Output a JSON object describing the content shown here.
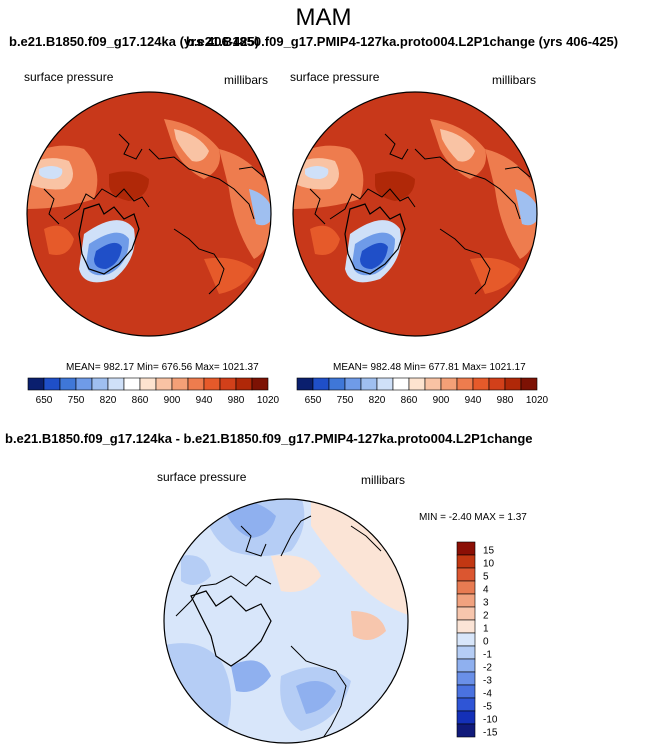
{
  "page": {
    "title": "MAM"
  },
  "panel_left": {
    "title": "b.e21.B1850.f09_g17.124ka (yrs 406-425)",
    "variable": "surface pressure",
    "units": "millibars",
    "stats": "MEAN= 982.17  Min= 676.56  Max= 1021.37"
  },
  "panel_right": {
    "title": "b.e21.B1850.f09_g17.PMIP4-127ka.proto004.L2P1change (yrs 406-425)",
    "variable": "surface pressure",
    "units": "millibars",
    "stats": "MEAN= 982.48  Min= 677.81  Max= 1021.17"
  },
  "panel_diff": {
    "title": "b.e21.B1850.f09_g17.124ka - b.e21.B1850.f09_g17.PMIP4-127ka.proto004.L2P1change",
    "variable": "surface pressure",
    "units": "millibars",
    "stats": "MIN =  -2.40 MAX =   1.37"
  },
  "colors": {
    "abs_scale": [
      "#0a1f6e",
      "#1f4fc8",
      "#3f77d8",
      "#6f9be8",
      "#9fbff0",
      "#cfe0f8",
      "#ffffff",
      "#fde3cf",
      "#f9c3a4",
      "#f4a077",
      "#ee7c4e",
      "#e65a2a",
      "#d2401a",
      "#b02808",
      "#7d1204"
    ],
    "diff_scale": [
      "#101a7a",
      "#1430b8",
      "#2f55d6",
      "#4a72e0",
      "#6a90e8",
      "#8fb0ef",
      "#b5cdf5",
      "#d8e6fa",
      "#fbe4d6",
      "#f7c6ad",
      "#f1a27f",
      "#e87b52",
      "#db5630",
      "#c23712",
      "#8b0f05"
    ]
  },
  "chart_data": [
    {
      "type": "heatmap",
      "title": "b.e21.B1850.f09_g17.124ka (yrs 406-425)",
      "field": "surface pressure",
      "units": "millibars",
      "projection": "polar stereographic (north)",
      "mean": 982.17,
      "min": 676.56,
      "max": 1021.37,
      "colorbar_ticks": [
        650,
        750,
        820,
        860,
        900,
        940,
        980,
        1020
      ]
    },
    {
      "type": "heatmap",
      "title": "b.e21.B1850.f09_g17.PMIP4-127ka.proto004.L2P1change (yrs 406-425)",
      "field": "surface pressure",
      "units": "millibars",
      "projection": "polar stereographic (north)",
      "mean": 982.48,
      "min": 677.81,
      "max": 1021.17,
      "colorbar_ticks": [
        650,
        750,
        820,
        860,
        900,
        940,
        980,
        1020
      ]
    },
    {
      "type": "heatmap",
      "title": "b.e21.B1850.f09_g17.124ka - b.e21.B1850.f09_g17.PMIP4-127ka.proto004.L2P1change",
      "field": "surface pressure",
      "units": "millibars",
      "projection": "polar stereographic (north)",
      "min": -2.4,
      "max": 1.37,
      "colorbar_levels": [
        "15",
        "10",
        "5",
        "4",
        "3",
        "2",
        "1",
        "0",
        "-1",
        "-2",
        "-3",
        "-4",
        "-5",
        "-10",
        "-15"
      ]
    }
  ]
}
